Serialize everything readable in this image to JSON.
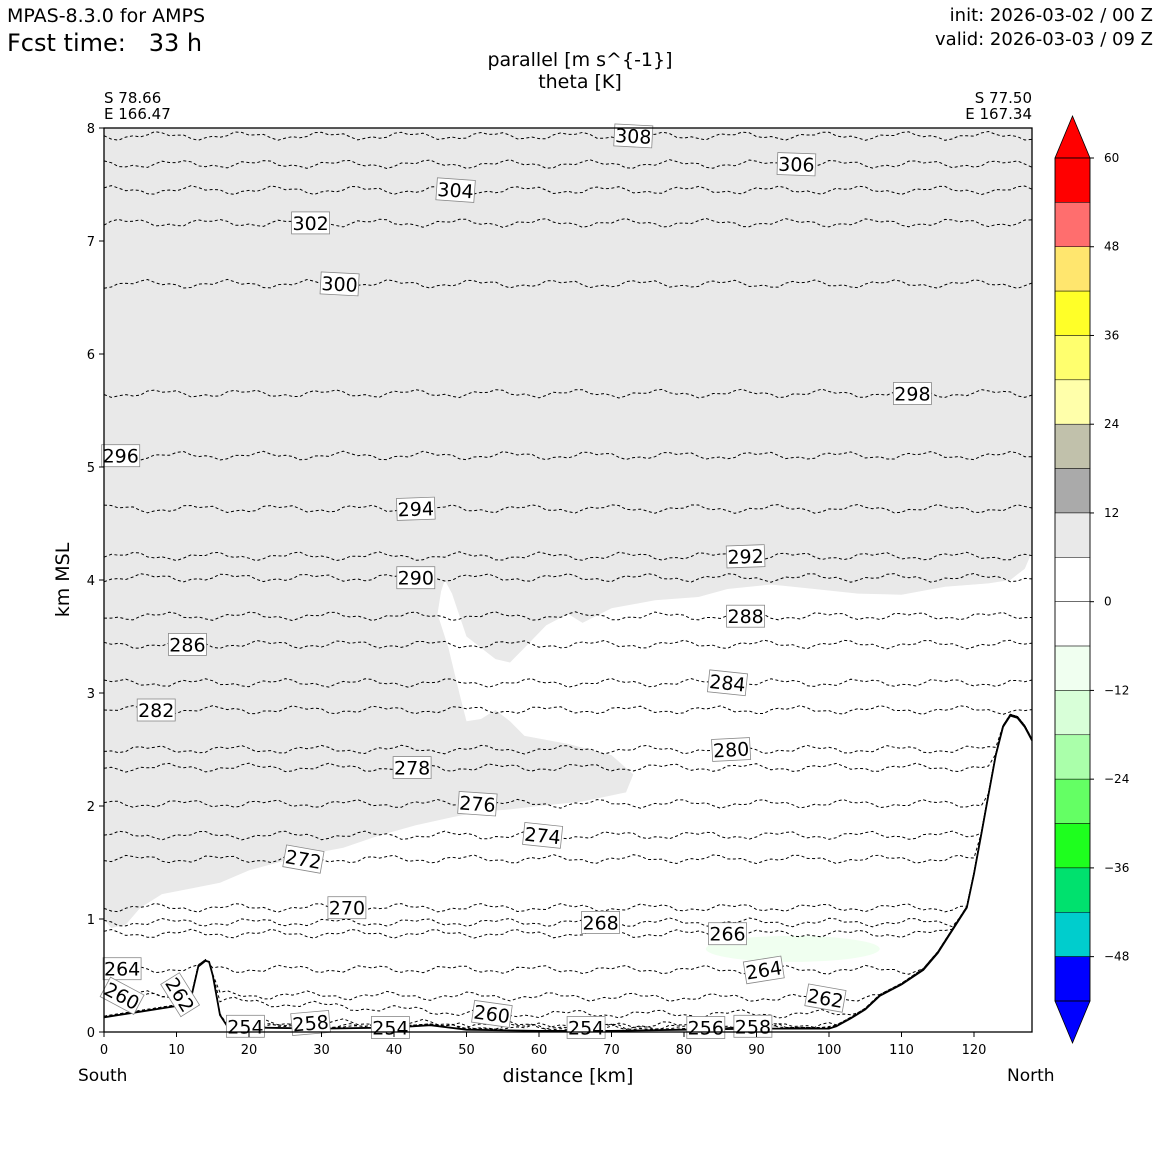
{
  "header": {
    "model": "MPAS-8.3.0 for AMPS",
    "fcst_label": "Fcst time:",
    "fcst_value": "33 h",
    "init": "init: 2026-03-02 / 00 Z",
    "valid": "valid: 2026-03-03 / 09 Z"
  },
  "chart_data": {
    "type": "cross-section",
    "title": "parallel [m s^{-1}]",
    "subtitle": "theta [K]",
    "xlabel": "distance [km]",
    "ylabel": "km MSL",
    "xlim": [
      0,
      128
    ],
    "ylim": [
      0,
      8
    ],
    "x_ticks": [
      0,
      10,
      20,
      30,
      40,
      50,
      60,
      70,
      80,
      90,
      100,
      110,
      120
    ],
    "y_ticks": [
      0,
      1,
      2,
      3,
      4,
      5,
      6,
      7,
      8
    ],
    "start_point": {
      "lat": "S 78.66",
      "lon": "E 166.47"
    },
    "end_point": {
      "lat": "S 77.50",
      "lon": "E 167.34"
    },
    "left_end_label": "South",
    "right_end_label": "North",
    "theta_levels": [
      254,
      256,
      258,
      260,
      262,
      264,
      266,
      268,
      270,
      272,
      274,
      276,
      278,
      280,
      282,
      284,
      286,
      288,
      290,
      292,
      294,
      296,
      298,
      300,
      302,
      304,
      306,
      308
    ],
    "contour_labels": [
      {
        "text": "308",
        "x": 73.0,
        "y": 7.93,
        "rot": 3
      },
      {
        "text": "306",
        "x": 95.5,
        "y": 7.68,
        "rot": 2
      },
      {
        "text": "304",
        "x": 48.5,
        "y": 7.45,
        "rot": 4
      },
      {
        "text": "302",
        "x": 28.5,
        "y": 7.16,
        "rot": 0
      },
      {
        "text": "300",
        "x": 32.5,
        "y": 6.62,
        "rot": 3
      },
      {
        "text": "298",
        "x": 111.5,
        "y": 5.65,
        "rot": 0
      },
      {
        "text": "296",
        "x": 2.3,
        "y": 5.1,
        "rot": 0
      },
      {
        "text": "294",
        "x": 43.0,
        "y": 4.63,
        "rot": -2
      },
      {
        "text": "292",
        "x": 88.5,
        "y": 4.21,
        "rot": -2
      },
      {
        "text": "290",
        "x": 43.0,
        "y": 4.02,
        "rot": 0
      },
      {
        "text": "288",
        "x": 88.5,
        "y": 3.68,
        "rot": 0
      },
      {
        "text": "286",
        "x": 11.5,
        "y": 3.43,
        "rot": 0
      },
      {
        "text": "284",
        "x": 86.0,
        "y": 3.09,
        "rot": 6
      },
      {
        "text": "282",
        "x": 7.2,
        "y": 2.85,
        "rot": 0
      },
      {
        "text": "280",
        "x": 86.5,
        "y": 2.5,
        "rot": -3
      },
      {
        "text": "278",
        "x": 42.5,
        "y": 2.34,
        "rot": 0
      },
      {
        "text": "276",
        "x": 51.5,
        "y": 2.02,
        "rot": 4
      },
      {
        "text": "274",
        "x": 60.5,
        "y": 1.74,
        "rot": 6
      },
      {
        "text": "272",
        "x": 27.5,
        "y": 1.53,
        "rot": 10
      },
      {
        "text": "270",
        "x": 33.5,
        "y": 1.1,
        "rot": 0
      },
      {
        "text": "268",
        "x": 68.5,
        "y": 0.97,
        "rot": 0
      },
      {
        "text": "266",
        "x": 86.0,
        "y": 0.87,
        "rot": 0
      },
      {
        "text": "264",
        "x": 2.5,
        "y": 0.56,
        "rot": 0
      },
      {
        "text": "264",
        "x": 91.0,
        "y": 0.55,
        "rot": -9
      },
      {
        "text": "262",
        "x": 10.5,
        "y": 0.33,
        "rot": 58
      },
      {
        "text": "262",
        "x": 99.5,
        "y": 0.3,
        "rot": 10
      },
      {
        "text": "260",
        "x": 2.5,
        "y": 0.32,
        "rot": 28
      },
      {
        "text": "260",
        "x": 53.5,
        "y": 0.16,
        "rot": 8
      },
      {
        "text": "258",
        "x": 28.5,
        "y": 0.08,
        "rot": -5
      },
      {
        "text": "258",
        "x": 89.5,
        "y": 0.05,
        "rot": 0
      },
      {
        "text": "256",
        "x": 83.0,
        "y": 0.04,
        "rot": 0
      },
      {
        "text": "254",
        "x": 19.5,
        "y": 0.05,
        "rot": 0
      },
      {
        "text": "254",
        "x": 39.5,
        "y": 0.04,
        "rot": 0
      },
      {
        "text": "254",
        "x": 66.5,
        "y": 0.04,
        "rot": 0
      }
    ],
    "terrain": {
      "x": [
        0,
        5,
        10,
        12,
        13,
        14,
        14.5,
        15,
        16,
        17,
        20,
        30,
        40,
        45,
        50,
        60,
        70,
        80,
        90,
        100,
        101,
        103,
        105,
        107,
        110,
        113,
        115,
        117,
        119,
        120,
        121,
        122,
        123,
        124,
        125,
        126,
        127,
        128
      ],
      "y": [
        0.13,
        0.18,
        0.23,
        0.3,
        0.58,
        0.63,
        0.62,
        0.5,
        0.15,
        0.05,
        0.04,
        0.03,
        0.04,
        0.06,
        0.02,
        0.01,
        0.01,
        0.02,
        0.03,
        0.03,
        0.05,
        0.12,
        0.2,
        0.32,
        0.42,
        0.55,
        0.7,
        0.9,
        1.1,
        1.4,
        1.75,
        2.1,
        2.45,
        2.7,
        2.8,
        2.78,
        2.7,
        2.58
      ]
    },
    "shaded_region": {
      "value_range": "6 to 12 m s^-1",
      "color": "#e9e9e9",
      "boundary": [
        [
          0,
          1.0
        ],
        [
          1,
          0.92
        ],
        [
          3,
          0.95
        ],
        [
          5,
          1.1
        ],
        [
          8,
          1.22
        ],
        [
          12,
          1.27
        ],
        [
          16,
          1.32
        ],
        [
          20,
          1.43
        ],
        [
          24,
          1.5
        ],
        [
          28,
          1.57
        ],
        [
          33,
          1.63
        ],
        [
          38,
          1.74
        ],
        [
          43,
          1.83
        ],
        [
          48,
          1.9
        ],
        [
          52,
          1.95
        ],
        [
          56,
          1.97
        ],
        [
          60,
          2.0
        ],
        [
          66,
          2.04
        ],
        [
          72,
          2.12
        ],
        [
          73,
          2.28
        ],
        [
          70,
          2.45
        ],
        [
          64,
          2.55
        ],
        [
          58,
          2.62
        ],
        [
          56,
          2.75
        ],
        [
          54,
          2.85
        ],
        [
          52,
          2.77
        ],
        [
          50,
          2.75
        ],
        [
          49,
          3.0
        ],
        [
          47.5,
          3.4
        ],
        [
          46,
          3.7
        ],
        [
          46.5,
          3.9
        ],
        [
          47,
          4.0
        ],
        [
          48,
          3.88
        ],
        [
          50,
          3.5
        ],
        [
          54,
          3.3
        ],
        [
          56,
          3.27
        ],
        [
          58,
          3.4
        ],
        [
          61,
          3.6
        ],
        [
          64,
          3.7
        ],
        [
          66,
          3.62
        ],
        [
          70,
          3.75
        ],
        [
          76,
          3.82
        ],
        [
          82,
          3.85
        ],
        [
          86,
          3.92
        ],
        [
          92,
          3.96
        ],
        [
          98,
          3.92
        ],
        [
          104,
          3.88
        ],
        [
          110,
          3.87
        ],
        [
          116,
          3.94
        ],
        [
          122,
          3.97
        ],
        [
          125,
          4.0
        ],
        [
          127,
          4.1
        ],
        [
          128,
          4.25
        ]
      ]
    },
    "weak_negative_patch": {
      "x_range": [
        83,
        107
      ],
      "y_range": [
        0.62,
        0.85
      ],
      "color": "#f0fff0"
    },
    "colorbar": {
      "ticks": [
        60,
        48,
        36,
        24,
        12,
        0,
        -12,
        -24,
        -36,
        -48
      ],
      "tick_labels": [
        "60",
        "48",
        "36",
        "24",
        "12",
        "0",
        "−12",
        "−24",
        "−36",
        "−48"
      ],
      "bins": [
        {
          "color": "#ff0000"
        },
        {
          "color": "#ff6e6e"
        },
        {
          "color": "#ffe66e"
        },
        {
          "color": "#ffff28"
        },
        {
          "color": "#ffff6e"
        },
        {
          "color": "#ffffaa"
        },
        {
          "color": "#c1c1ab"
        },
        {
          "color": "#aaaaaa"
        },
        {
          "color": "#e9e9e9"
        },
        {
          "color": "#ffffff"
        },
        {
          "color": "#ffffff"
        },
        {
          "color": "#f0fff0"
        },
        {
          "color": "#d8ffd8"
        },
        {
          "color": "#aaffaa"
        },
        {
          "color": "#64ff64"
        },
        {
          "color": "#1eff1e"
        },
        {
          "color": "#00e16e"
        },
        {
          "color": "#00cdcd"
        },
        {
          "color": "#0000ff"
        }
      ],
      "over_color": "#ff0000",
      "under_color": "#0000ff"
    }
  }
}
